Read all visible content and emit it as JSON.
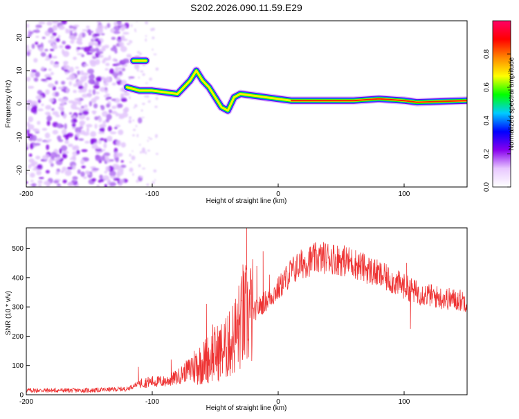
{
  "title": "S202.2026.090.11.59.E29",
  "chart_data": [
    {
      "type": "heatmap",
      "xlabel": "Height of straight line (km)",
      "ylabel": "Frequency (Hz)",
      "xlim": [
        -200,
        150
      ],
      "ylim": [
        -25,
        25
      ],
      "x_ticks": [
        -200,
        -100,
        0,
        100
      ],
      "y_ticks": [
        -20,
        -10,
        0,
        10,
        20
      ],
      "colorbar": {
        "label": "Normalized spectral amplitude",
        "range": [
          0.0,
          1.0
        ],
        "ticks": [
          "0.0",
          "0.2",
          "0.4",
          "0.6",
          "0.8"
        ],
        "stops": [
          "#ffffff",
          "#e8c8ff",
          "#8800ee",
          "#0000ff",
          "#00ccff",
          "#00ff00",
          "#ffff00",
          "#ff8800",
          "#ff0000",
          "#ff0066"
        ]
      },
      "ridge": {
        "x": [
          -120,
          -110,
          -100,
          -90,
          -80,
          -70,
          -65,
          -60,
          -55,
          -50,
          -45,
          -40,
          -35,
          -30,
          -20,
          -10,
          0,
          10,
          20,
          40,
          60,
          80,
          100,
          110,
          150
        ],
        "y": [
          5,
          4,
          4,
          3.5,
          3,
          7,
          10,
          7,
          5,
          2,
          -1,
          -2,
          2,
          3,
          2.5,
          2,
          1.5,
          1,
          1,
          1,
          1,
          1.5,
          1,
          0.5,
          1
        ]
      },
      "branch": {
        "x": [
          -115,
          -105
        ],
        "y": [
          13,
          13
        ]
      }
    },
    {
      "type": "line",
      "xlabel": "Height of straight line (km)",
      "ylabel": "SNR (10 * v/v)",
      "xlim": [
        -200,
        150
      ],
      "ylim": [
        0,
        570
      ],
      "x_ticks": [
        -200,
        -100,
        0,
        100
      ],
      "y_ticks": [
        0,
        100,
        200,
        300,
        400,
        500
      ],
      "color": "#ee3333",
      "envelope": {
        "x": [
          -200,
          -150,
          -120,
          -110,
          -100,
          -90,
          -80,
          -70,
          -60,
          -50,
          -40,
          -35,
          -30,
          -25,
          -20,
          -10,
          0,
          10,
          20,
          30,
          40,
          50,
          60,
          70,
          80,
          90,
          100,
          110,
          120,
          130,
          140,
          150
        ],
        "y": [
          15,
          15,
          20,
          40,
          45,
          45,
          60,
          90,
          110,
          140,
          160,
          200,
          240,
          270,
          280,
          320,
          360,
          420,
          450,
          465,
          470,
          460,
          450,
          430,
          410,
          390,
          370,
          350,
          340,
          330,
          325,
          320
        ]
      },
      "spikes": [
        {
          "x": -111,
          "y": 95
        },
        {
          "x": -85,
          "y": 120
        },
        {
          "x": -57,
          "y": 310
        },
        {
          "x": -52,
          "y": 240
        },
        {
          "x": -40,
          "y": 270
        },
        {
          "x": -28,
          "y": 445
        },
        {
          "x": -25,
          "y": 570
        },
        {
          "x": -17,
          "y": 440
        },
        {
          "x": -12,
          "y": 490
        },
        {
          "x": -7,
          "y": 410
        },
        {
          "x": 102,
          "y": 450
        }
      ],
      "dips": [
        {
          "x": 105,
          "y": 225
        }
      ]
    }
  ]
}
